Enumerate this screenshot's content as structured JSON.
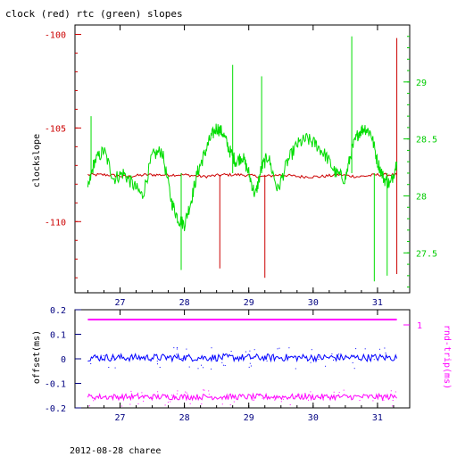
{
  "chart_data": [
    {
      "type": "line",
      "title": "clock (red) rtc (green) slopes",
      "xlabel": "",
      "ylabel": "clockslope",
      "x_ticks": [
        "27",
        "28",
        "29",
        "30",
        "31"
      ],
      "xlim": [
        26.3,
        31.5
      ],
      "ylim_left": [
        -113.8,
        -99.5
      ],
      "y_ticks_left": [
        "-100",
        "-105",
        "-110"
      ],
      "ylim_right": [
        27.15,
        29.5
      ],
      "y_ticks_right": [
        "29",
        "28.5",
        "28",
        "27.5"
      ],
      "colors": {
        "left_axis": "#cc0000",
        "right_axis": "#00cc00",
        "x_axis": "#000080"
      },
      "series": [
        {
          "name": "clock (red)",
          "axis": "left",
          "color": "#cc0000",
          "x": [
            26.5,
            26.8,
            27.1,
            27.4,
            27.7,
            28.0,
            28.3,
            28.6,
            28.9,
            29.2,
            29.5,
            29.8,
            30.1,
            30.4,
            30.7,
            31.0,
            31.3
          ],
          "y": [
            -107.5,
            -107.5,
            -107.6,
            -107.5,
            -107.5,
            -107.5,
            -107.6,
            -107.5,
            -107.5,
            -107.6,
            -107.5,
            -107.6,
            -107.6,
            -107.5,
            -107.6,
            -107.5,
            -107.5
          ],
          "spikes": [
            {
              "x": 28.55,
              "y": -112.5
            },
            {
              "x": 29.25,
              "y": -113.0
            },
            {
              "x": 31.3,
              "y": -100.2
            },
            {
              "x": 31.3,
              "y": -112.8
            }
          ]
        },
        {
          "name": "rtc (green)",
          "axis": "right",
          "color": "#00dd00",
          "x": [
            26.5,
            26.6,
            26.75,
            26.9,
            27.05,
            27.2,
            27.35,
            27.5,
            27.65,
            27.8,
            27.9,
            28.0,
            28.1,
            28.2,
            28.3,
            28.4,
            28.5,
            28.6,
            28.7,
            28.8,
            28.9,
            29.0,
            29.1,
            29.2,
            29.3,
            29.45,
            29.6,
            29.75,
            29.9,
            30.05,
            30.2,
            30.35,
            30.5,
            30.6,
            30.7,
            30.8,
            30.9,
            31.0,
            31.1,
            31.2,
            31.3
          ],
          "y": [
            28.05,
            28.3,
            28.4,
            28.15,
            28.2,
            28.1,
            28.0,
            28.35,
            28.4,
            27.95,
            27.8,
            27.75,
            27.95,
            28.2,
            28.35,
            28.5,
            28.6,
            28.55,
            28.4,
            28.3,
            28.35,
            28.2,
            28.0,
            28.25,
            28.35,
            28.05,
            28.3,
            28.45,
            28.5,
            28.45,
            28.35,
            28.2,
            28.15,
            28.4,
            28.55,
            28.6,
            28.55,
            28.3,
            28.15,
            28.1,
            28.3
          ],
          "spikes": [
            {
              "x": 26.55,
              "y": 28.7
            },
            {
              "x": 27.95,
              "y": 27.35
            },
            {
              "x": 28.75,
              "y": 29.15
            },
            {
              "x": 29.2,
              "y": 29.05
            },
            {
              "x": 30.6,
              "y": 29.4
            },
            {
              "x": 30.95,
              "y": 27.25
            },
            {
              "x": 31.15,
              "y": 27.3
            }
          ]
        }
      ],
      "grid": false
    },
    {
      "type": "scatter",
      "xlabel": "",
      "ylabel": "offset(ms)",
      "ylabel_right": "rnd-trip(ms)",
      "x_ticks": [
        "27",
        "28",
        "29",
        "30",
        "31"
      ],
      "xlim": [
        26.3,
        31.5
      ],
      "ylim_left": [
        -0.2,
        0.2
      ],
      "y_ticks_left": [
        "0.2",
        "0.1",
        "0",
        "-0.1",
        "-0.2"
      ],
      "y_ticks_right": [
        "1"
      ],
      "colors": {
        "left_axis": "#000080",
        "right_axis": "#ff00ff"
      },
      "series": [
        {
          "name": "offset",
          "axis": "left",
          "color": "#0000ff",
          "x_range": [
            26.5,
            31.3
          ],
          "center": 0.005,
          "spread": 0.015
        },
        {
          "name": "rnd-trip upper",
          "axis": "right",
          "color": "#ff00ff",
          "x_range": [
            26.5,
            31.3
          ],
          "value": 1.05
        },
        {
          "name": "rnd-trip lower",
          "axis": "left",
          "color": "#ff00ff",
          "x_range": [
            26.5,
            31.3
          ],
          "center": -0.155,
          "spread": 0.012
        }
      ],
      "grid": false
    }
  ],
  "footer": "2012-08-28 charee"
}
